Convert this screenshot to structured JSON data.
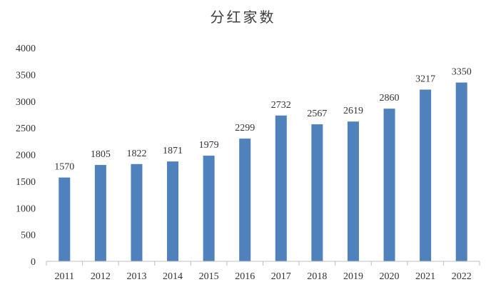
{
  "chart_data": {
    "type": "bar",
    "title": "分红家数",
    "xlabel": "",
    "ylabel": "",
    "categories": [
      "2011",
      "2012",
      "2013",
      "2014",
      "2015",
      "2016",
      "2017",
      "2018",
      "2019",
      "2020",
      "2021",
      "2022"
    ],
    "values": [
      1570,
      1805,
      1822,
      1871,
      1979,
      2299,
      2732,
      2567,
      2619,
      2860,
      3217,
      3350
    ],
    "ylim": [
      0,
      4000
    ],
    "yticks": [
      0,
      500,
      1000,
      1500,
      2000,
      2500,
      3000,
      3500,
      4000
    ],
    "grid": false,
    "legend": "none",
    "bar_color": "#4F81BD",
    "axis_color": "#BFBFBF"
  }
}
